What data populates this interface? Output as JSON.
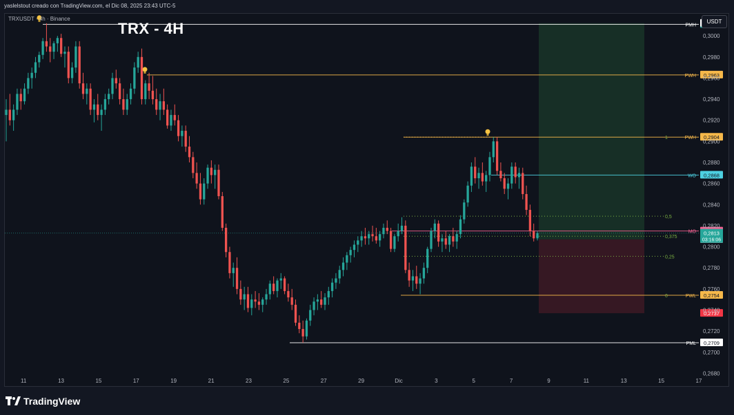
{
  "header": {
    "caption": "yaslelstout creado con TradingView.com, el Dic 08, 2025 23:43 UTC-5"
  },
  "symbol_info": "TRXUSDT · 4h · Binance",
  "title": "TRX - 4H",
  "currency_button": "USDT",
  "brand": "TradingView",
  "icons": {
    "logo": "tradingview-logo-icon",
    "bulb": "lightbulb-icon"
  },
  "colors": {
    "up": "#26a69a",
    "down": "#ef5350",
    "background": "#0f131c",
    "pmh": "#ffffff",
    "pwh": "#f6b84a",
    "wo": "#4dd0e1",
    "mo": "#f06292",
    "fib": "#7cb342",
    "long_zone": "#1b3a2a",
    "short_zone": "#3d1a24"
  },
  "chart_data": {
    "type": "candlestick",
    "title": "TRX - 4H",
    "price_range": [
      0.2677,
      0.3021
    ],
    "x_range_days": [
      "2025-11-10",
      "2025-12-17"
    ],
    "y_ticks": [
      "0,3000",
      "0,2980",
      "0,2960",
      "0,2940",
      "0,2920",
      "0,2900",
      "0,2880",
      "0,2860",
      "0,2840",
      "0,2820",
      "0,2800",
      "0,2780",
      "0,2760",
      "0,2740",
      "0,2720",
      "0,2700",
      "0,2680"
    ],
    "x_ticks": [
      "11",
      "13",
      "15",
      "17",
      "19",
      "21",
      "23",
      "25",
      "27",
      "29",
      "Dic",
      "3",
      "5",
      "7",
      "9",
      "11",
      "13",
      "15",
      "17"
    ],
    "levels": [
      {
        "label": "PMH",
        "value": 0.3011,
        "tag": "0,3011",
        "color": "#ffffff",
        "tag_bg": "#26a69a",
        "tag_color": "#ffffff"
      },
      {
        "label": "PWH",
        "value": 0.2963,
        "tag": "0,2963",
        "color": "#f6b84a",
        "tag_bg": "#f6b84a",
        "tag_color": "#131722"
      },
      {
        "label": "PWH",
        "value": 0.2904,
        "tag": "0,2904",
        "color": "#f6b84a",
        "tag_bg": "#f6b84a",
        "tag_color": "#131722"
      },
      {
        "label": "WO",
        "value": 0.2868,
        "tag": "0,2868",
        "color": "#4dd0e1",
        "tag_bg": "#4dd0e1",
        "tag_color": "#131722"
      },
      {
        "label": "MO",
        "value": 0.2815,
        "tag": "0,2815",
        "color": "#f06292",
        "tag_bg": "#f06292",
        "tag_color": "#ffffff"
      },
      {
        "label": "PWL",
        "value": 0.2754,
        "tag": "0,2754",
        "color": "#f6b84a",
        "tag_bg": "#f6b84a",
        "tag_color": "#131722"
      },
      {
        "label": "PML",
        "value": 0.2709,
        "tag": "0,2709",
        "color": "#ffffff",
        "tag_bg": "#ffffff",
        "tag_color": "#131722"
      }
    ],
    "fib_levels": [
      {
        "label": "1",
        "value": 0.2904
      },
      {
        "label": "0,5",
        "value": 0.2829
      },
      {
        "label": "0,375",
        "value": 0.281
      },
      {
        "label": "0,25",
        "value": 0.2791
      },
      {
        "label": "0",
        "value": 0.2754
      }
    ],
    "extra_tags": [
      {
        "text": "0,3012",
        "value": 0.3012,
        "bg": "#ffffff",
        "color": "#131722"
      },
      {
        "text": "0,2737",
        "value": 0.2737,
        "bg": "#f23645",
        "color": "#ffffff"
      },
      {
        "text": "0,2807",
        "value": 0.2807,
        "bg": "#d1d4dc",
        "color": "#131722"
      }
    ],
    "current": {
      "price": "0,2813",
      "countdown": "03:16:06",
      "value": 0.2813
    },
    "position": {
      "entry": 0.2807,
      "target": 0.3012,
      "stop": 0.2737
    },
    "candles": [
      [
        0.2925,
        0.294,
        0.29,
        0.293
      ],
      [
        0.293,
        0.2945,
        0.2915,
        0.292
      ],
      [
        0.292,
        0.2935,
        0.291,
        0.293
      ],
      [
        0.293,
        0.295,
        0.2925,
        0.2945
      ],
      [
        0.2945,
        0.295,
        0.293,
        0.2938
      ],
      [
        0.2938,
        0.2955,
        0.2935,
        0.295
      ],
      [
        0.295,
        0.2965,
        0.2945,
        0.296
      ],
      [
        0.296,
        0.297,
        0.295,
        0.2965
      ],
      [
        0.2965,
        0.298,
        0.296,
        0.2975
      ],
      [
        0.2975,
        0.2985,
        0.297,
        0.2982
      ],
      [
        0.2982,
        0.2998,
        0.2978,
        0.2995
      ],
      [
        0.2995,
        0.3012,
        0.2985,
        0.299
      ],
      [
        0.299,
        0.2998,
        0.2975,
        0.2985
      ],
      [
        0.2985,
        0.2995,
        0.2978,
        0.2993
      ],
      [
        0.2993,
        0.3,
        0.2985,
        0.2998
      ],
      [
        0.2998,
        0.3002,
        0.298,
        0.2983
      ],
      [
        0.2983,
        0.299,
        0.297,
        0.2985
      ],
      [
        0.2985,
        0.299,
        0.2955,
        0.296
      ],
      [
        0.296,
        0.2975,
        0.2955,
        0.297
      ],
      [
        0.297,
        0.2995,
        0.2965,
        0.299
      ],
      [
        0.299,
        0.2995,
        0.295,
        0.2955
      ],
      [
        0.2955,
        0.2965,
        0.294,
        0.2945
      ],
      [
        0.2945,
        0.2955,
        0.2935,
        0.295
      ],
      [
        0.295,
        0.2955,
        0.2925,
        0.293
      ],
      [
        0.293,
        0.294,
        0.2918,
        0.2935
      ],
      [
        0.2935,
        0.2945,
        0.292,
        0.2925
      ],
      [
        0.2925,
        0.2935,
        0.291,
        0.293
      ],
      [
        0.293,
        0.2945,
        0.2925,
        0.294
      ],
      [
        0.294,
        0.295,
        0.2935,
        0.2945
      ],
      [
        0.2945,
        0.2965,
        0.294,
        0.296
      ],
      [
        0.296,
        0.2968,
        0.295,
        0.2955
      ],
      [
        0.2955,
        0.296,
        0.2935,
        0.294
      ],
      [
        0.294,
        0.295,
        0.2925,
        0.293
      ],
      [
        0.293,
        0.2945,
        0.2925,
        0.294
      ],
      [
        0.294,
        0.2955,
        0.2935,
        0.295
      ],
      [
        0.295,
        0.2975,
        0.2945,
        0.297
      ],
      [
        0.297,
        0.2985,
        0.2965,
        0.298
      ],
      [
        0.298,
        0.2988,
        0.2935,
        0.294
      ],
      [
        0.294,
        0.2958,
        0.2935,
        0.2955
      ],
      [
        0.2955,
        0.2965,
        0.294,
        0.2948
      ],
      [
        0.2948,
        0.2962,
        0.2935,
        0.294
      ],
      [
        0.294,
        0.295,
        0.2925,
        0.293
      ],
      [
        0.293,
        0.2945,
        0.292,
        0.2938
      ],
      [
        0.2938,
        0.295,
        0.2925,
        0.293
      ],
      [
        0.293,
        0.2935,
        0.2912,
        0.2915
      ],
      [
        0.2915,
        0.293,
        0.291,
        0.2925
      ],
      [
        0.2925,
        0.2935,
        0.2915,
        0.292
      ],
      [
        0.292,
        0.2925,
        0.29,
        0.2905
      ],
      [
        0.2905,
        0.2915,
        0.2895,
        0.291
      ],
      [
        0.291,
        0.2915,
        0.289,
        0.2895
      ],
      [
        0.2895,
        0.2905,
        0.288,
        0.2885
      ],
      [
        0.2885,
        0.289,
        0.2865,
        0.287
      ],
      [
        0.287,
        0.288,
        0.2855,
        0.286
      ],
      [
        0.286,
        0.287,
        0.284,
        0.2845
      ],
      [
        0.2845,
        0.2865,
        0.284,
        0.286
      ],
      [
        0.286,
        0.2878,
        0.2855,
        0.2875
      ],
      [
        0.2875,
        0.2882,
        0.286,
        0.2868
      ],
      [
        0.2868,
        0.2878,
        0.2855,
        0.2873
      ],
      [
        0.2873,
        0.2878,
        0.2845,
        0.2848
      ],
      [
        0.2848,
        0.2852,
        0.2815,
        0.2818
      ],
      [
        0.2818,
        0.2822,
        0.279,
        0.2795
      ],
      [
        0.2795,
        0.28,
        0.277,
        0.2775
      ],
      [
        0.2775,
        0.2785,
        0.2762,
        0.278
      ],
      [
        0.278,
        0.279,
        0.2755,
        0.276
      ],
      [
        0.276,
        0.2768,
        0.2745,
        0.275
      ],
      [
        0.275,
        0.2762,
        0.274,
        0.2755
      ],
      [
        0.2755,
        0.2762,
        0.2738,
        0.2742
      ],
      [
        0.2742,
        0.2755,
        0.2735,
        0.275
      ],
      [
        0.275,
        0.2758,
        0.2742,
        0.2748
      ],
      [
        0.2748,
        0.2756,
        0.274,
        0.2745
      ],
      [
        0.2745,
        0.2752,
        0.2738,
        0.275
      ],
      [
        0.275,
        0.276,
        0.2745,
        0.2755
      ],
      [
        0.2755,
        0.2768,
        0.275,
        0.2765
      ],
      [
        0.2765,
        0.2772,
        0.2755,
        0.2758
      ],
      [
        0.2758,
        0.277,
        0.2752,
        0.2768
      ],
      [
        0.2768,
        0.2775,
        0.276,
        0.277
      ],
      [
        0.277,
        0.2772,
        0.2755,
        0.2758
      ],
      [
        0.2758,
        0.2765,
        0.2748,
        0.2752
      ],
      [
        0.2752,
        0.276,
        0.274,
        0.2745
      ],
      [
        0.2745,
        0.275,
        0.2725,
        0.2728
      ],
      [
        0.2728,
        0.2735,
        0.2718,
        0.2722
      ],
      [
        0.2722,
        0.273,
        0.2709,
        0.2715
      ],
      [
        0.2715,
        0.2732,
        0.2712,
        0.273
      ],
      [
        0.273,
        0.2745,
        0.2725,
        0.274
      ],
      [
        0.274,
        0.2752,
        0.2735,
        0.2748
      ],
      [
        0.2748,
        0.2755,
        0.274,
        0.275
      ],
      [
        0.275,
        0.2758,
        0.2742,
        0.2745
      ],
      [
        0.2745,
        0.2756,
        0.274,
        0.2752
      ],
      [
        0.2752,
        0.2762,
        0.2745,
        0.2758
      ],
      [
        0.2758,
        0.277,
        0.2752,
        0.2766
      ],
      [
        0.2766,
        0.2775,
        0.276,
        0.277
      ],
      [
        0.277,
        0.2782,
        0.2765,
        0.2778
      ],
      [
        0.2778,
        0.279,
        0.2772,
        0.2785
      ],
      [
        0.2785,
        0.2795,
        0.2778,
        0.2792
      ],
      [
        0.2792,
        0.28,
        0.2785,
        0.2797
      ],
      [
        0.2797,
        0.2806,
        0.279,
        0.2802
      ],
      [
        0.2802,
        0.281,
        0.2795,
        0.2806
      ],
      [
        0.2806,
        0.2815,
        0.28,
        0.281
      ],
      [
        0.281,
        0.2818,
        0.2802,
        0.2808
      ],
      [
        0.2808,
        0.2815,
        0.2802,
        0.2812
      ],
      [
        0.2812,
        0.282,
        0.2805,
        0.281
      ],
      [
        0.281,
        0.2818,
        0.2803,
        0.2806
      ],
      [
        0.2806,
        0.2815,
        0.28,
        0.2812
      ],
      [
        0.2812,
        0.2822,
        0.2808,
        0.2818
      ],
      [
        0.2818,
        0.2825,
        0.2812,
        0.2815
      ],
      [
        0.2815,
        0.2818,
        0.2795,
        0.2798
      ],
      [
        0.2798,
        0.2812,
        0.2795,
        0.281
      ],
      [
        0.281,
        0.2822,
        0.2805,
        0.2815
      ],
      [
        0.2815,
        0.2828,
        0.2812,
        0.282
      ],
      [
        0.282,
        0.2825,
        0.2775,
        0.2778
      ],
      [
        0.2778,
        0.2785,
        0.2762,
        0.2768
      ],
      [
        0.2768,
        0.2778,
        0.2758,
        0.2772
      ],
      [
        0.2772,
        0.2782,
        0.276,
        0.2765
      ],
      [
        0.2765,
        0.2775,
        0.2755,
        0.277
      ],
      [
        0.277,
        0.2785,
        0.2765,
        0.278
      ],
      [
        0.278,
        0.28,
        0.2775,
        0.2798
      ],
      [
        0.2798,
        0.2818,
        0.2795,
        0.2815
      ],
      [
        0.2815,
        0.2826,
        0.2808,
        0.2822
      ],
      [
        0.2822,
        0.2825,
        0.28,
        0.2805
      ],
      [
        0.2805,
        0.2812,
        0.2795,
        0.2808
      ],
      [
        0.2808,
        0.2815,
        0.2798,
        0.2802
      ],
      [
        0.2802,
        0.2812,
        0.2795,
        0.281
      ],
      [
        0.281,
        0.2818,
        0.28,
        0.2805
      ],
      [
        0.2805,
        0.2815,
        0.2798,
        0.2812
      ],
      [
        0.2812,
        0.283,
        0.2808,
        0.2826
      ],
      [
        0.2826,
        0.2845,
        0.2822,
        0.2842
      ],
      [
        0.2842,
        0.2862,
        0.2838,
        0.2858
      ],
      [
        0.2858,
        0.288,
        0.2852,
        0.2876
      ],
      [
        0.2876,
        0.2885,
        0.286,
        0.2865
      ],
      [
        0.2865,
        0.2875,
        0.2855,
        0.287
      ],
      [
        0.287,
        0.288,
        0.2858,
        0.2862
      ],
      [
        0.2862,
        0.2872,
        0.2852,
        0.2868
      ],
      [
        0.2868,
        0.289,
        0.2862,
        0.2885
      ],
      [
        0.2885,
        0.2904,
        0.288,
        0.29
      ],
      [
        0.29,
        0.2904,
        0.2868,
        0.2872
      ],
      [
        0.2872,
        0.288,
        0.2862,
        0.2865
      ],
      [
        0.2865,
        0.287,
        0.285,
        0.2855
      ],
      [
        0.2855,
        0.2865,
        0.2845,
        0.286
      ],
      [
        0.286,
        0.288,
        0.2855,
        0.2876
      ],
      [
        0.2876,
        0.288,
        0.286,
        0.2866
      ],
      [
        0.2866,
        0.2875,
        0.2855,
        0.287
      ],
      [
        0.287,
        0.2875,
        0.2845,
        0.285
      ],
      [
        0.285,
        0.2858,
        0.283,
        0.2835
      ],
      [
        0.2835,
        0.284,
        0.281,
        0.2815
      ],
      [
        0.2815,
        0.2822,
        0.2805,
        0.2808
      ],
      [
        0.2808,
        0.2815,
        0.2806,
        0.2813
      ]
    ]
  }
}
